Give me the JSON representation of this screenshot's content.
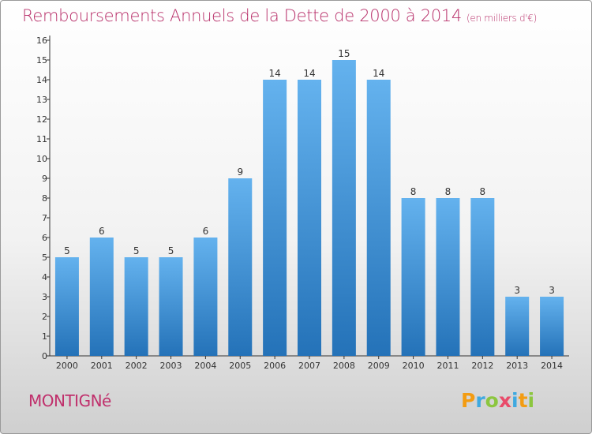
{
  "header": {
    "title": "Remboursements Annuels de la Dette de 2000 à 2014",
    "unit": "(en milliers d'€)"
  },
  "footer": {
    "commune": "MONTIGNé",
    "logo_text": "Proxiti"
  },
  "colors": {
    "title": "#b8306a",
    "bar_light": "#64b2ee",
    "bar_dark": "#2472b8",
    "axis": "#333333"
  },
  "chart_data": {
    "type": "bar",
    "categories": [
      "2000",
      "2001",
      "2002",
      "2003",
      "2004",
      "2005",
      "2006",
      "2007",
      "2008",
      "2009",
      "2010",
      "2011",
      "2012",
      "2013",
      "2014"
    ],
    "values": [
      5,
      6,
      5,
      5,
      6,
      9,
      14,
      14,
      15,
      14,
      8,
      8,
      8,
      3,
      3
    ],
    "ylim": [
      0,
      16
    ],
    "yticks": [
      0,
      1,
      2,
      3,
      4,
      5,
      6,
      7,
      8,
      9,
      10,
      11,
      12,
      13,
      14,
      15,
      16
    ],
    "data_labels": true,
    "grid": false
  }
}
